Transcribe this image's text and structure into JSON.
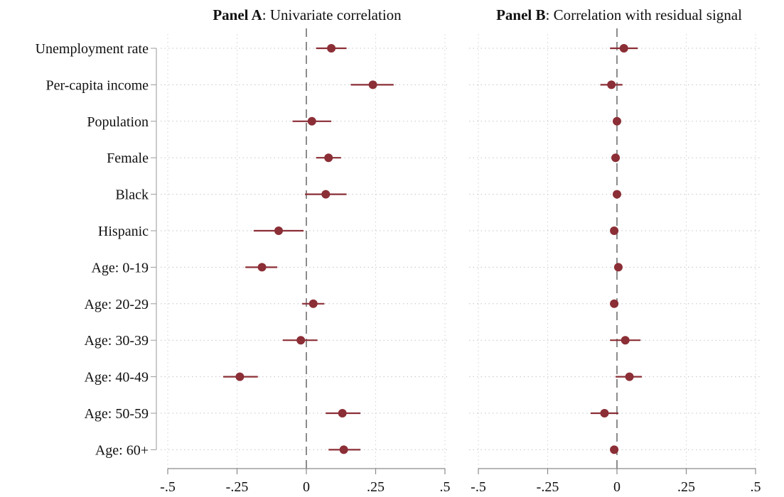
{
  "chart_data": {
    "type": "scatter",
    "variables": [
      "Unemployment rate",
      "Per-capita income",
      "Population",
      "Female",
      "Black",
      "Hispanic",
      "Age: 0-19",
      "Age: 20-29",
      "Age: 30-39",
      "Age: 40-49",
      "Age: 50-59",
      "Age: 60+"
    ],
    "xlim": [
      -0.5,
      0.5
    ],
    "xticks": [
      -0.5,
      -0.25,
      0,
      0.25,
      0.5
    ],
    "xtick_labels": [
      "-.5",
      "-.25",
      "0",
      ".25",
      ".5"
    ],
    "reference_line": 0,
    "marker_color": "#8b2e36",
    "panels": [
      {
        "title_bold": "Panel A",
        "title_rest": ": Univariate correlation",
        "estimates": [
          0.09,
          0.24,
          0.02,
          0.08,
          0.07,
          -0.1,
          -0.16,
          0.025,
          -0.02,
          -0.24,
          0.13,
          0.135
        ],
        "ci_low": [
          0.035,
          0.16,
          -0.05,
          0.035,
          -0.005,
          -0.19,
          -0.22,
          -0.015,
          -0.085,
          -0.3,
          0.07,
          0.08
        ],
        "ci_high": [
          0.145,
          0.315,
          0.09,
          0.125,
          0.145,
          -0.01,
          -0.105,
          0.065,
          0.04,
          -0.175,
          0.195,
          0.195
        ]
      },
      {
        "title_bold": "Panel B",
        "title_rest": ": Correlation with residual signal",
        "estimates": [
          0.025,
          -0.02,
          0.0,
          -0.005,
          0.0,
          -0.01,
          0.005,
          -0.01,
          0.03,
          0.045,
          -0.045,
          -0.01
        ],
        "ci_low": [
          -0.025,
          -0.06,
          -0.005,
          -0.01,
          -0.005,
          -0.015,
          -0.01,
          -0.025,
          -0.025,
          -0.005,
          -0.095,
          -0.025
        ],
        "ci_high": [
          0.075,
          0.02,
          0.005,
          0.0,
          0.005,
          -0.005,
          0.02,
          0.005,
          0.085,
          0.09,
          0.005,
          0.005
        ]
      }
    ]
  }
}
